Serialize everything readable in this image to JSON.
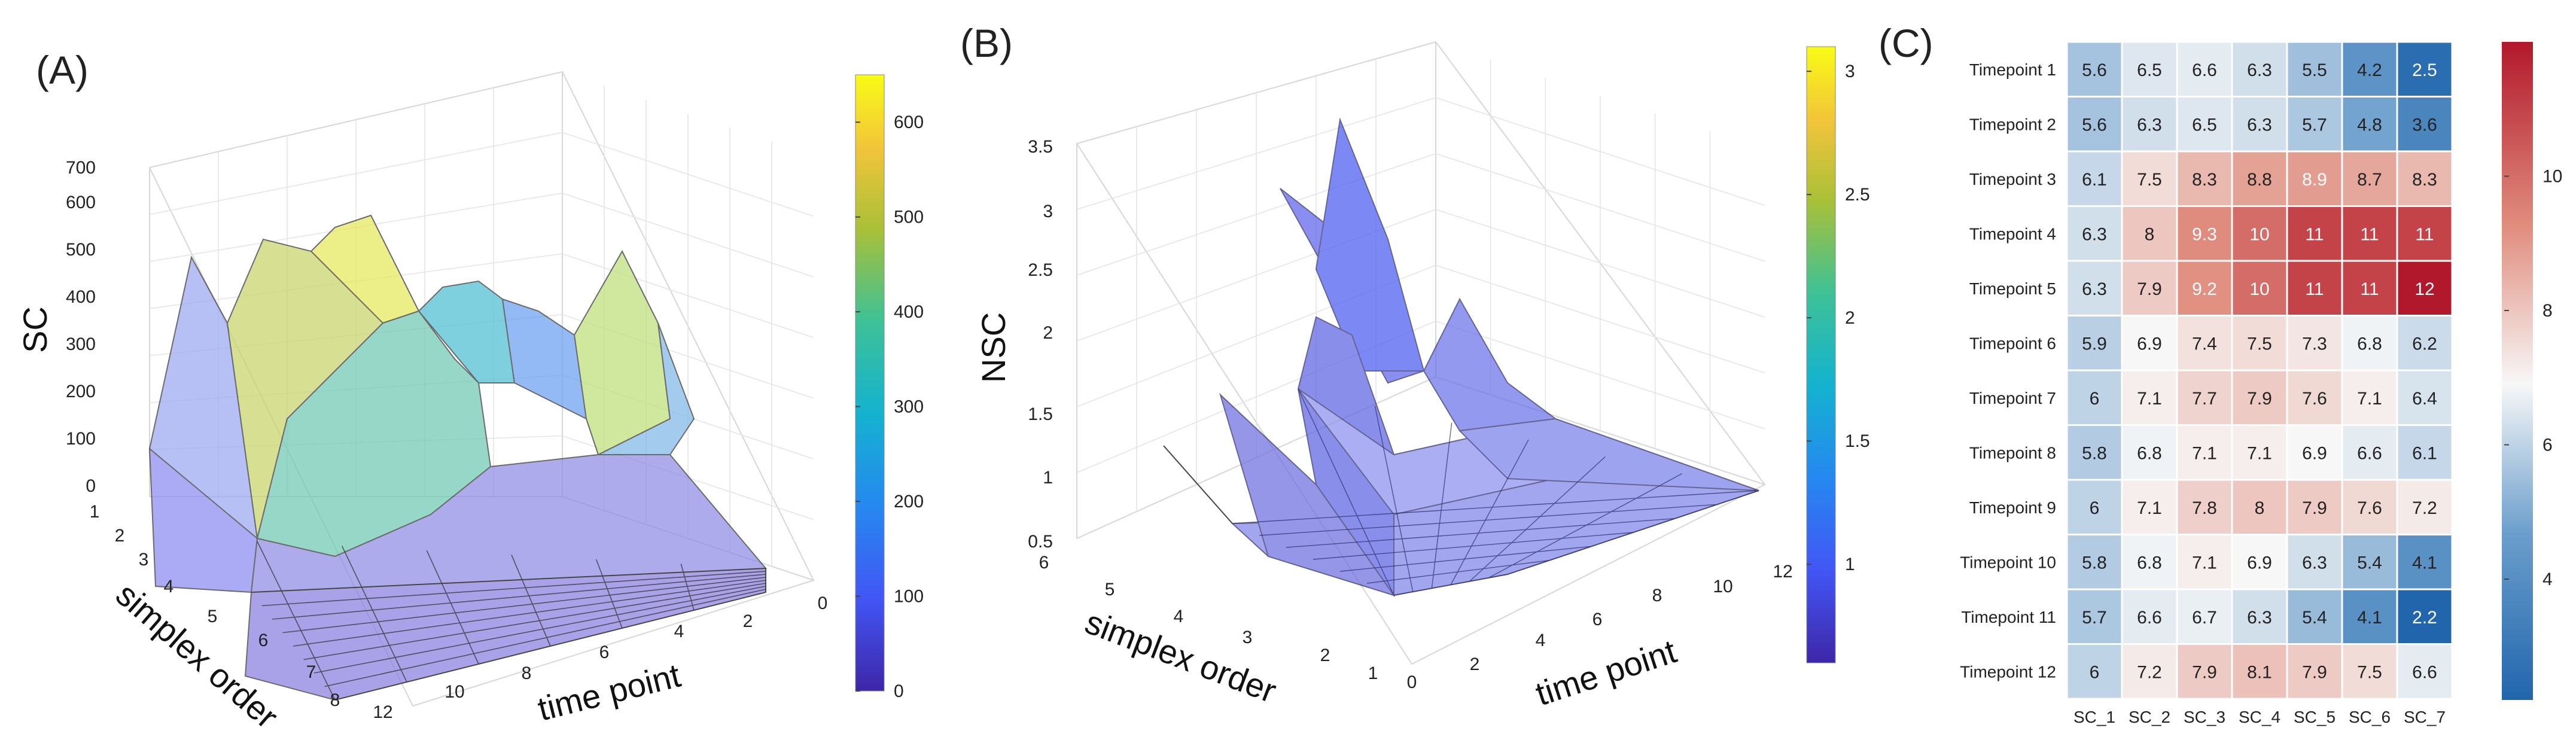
{
  "panels": {
    "a": {
      "label": "(A)",
      "title_z": "SC",
      "xlabel": "simplex order",
      "ylabel": "time point",
      "z_ticks": [
        "0",
        "100",
        "200",
        "300",
        "400",
        "500",
        "600",
        "700"
      ],
      "x_ticks": [
        "1",
        "2",
        "3",
        "4",
        "5",
        "6",
        "7",
        "8"
      ],
      "y_ticks": [
        "2",
        "4",
        "6",
        "8",
        "10",
        "12"
      ],
      "y_tick0": "0",
      "colorbar_ticks": [
        "0",
        "100",
        "200",
        "300",
        "400",
        "500",
        "600"
      ]
    },
    "b": {
      "label": "(B)",
      "title_z": "NSC",
      "xlabel": "simplex order",
      "ylabel": "time point",
      "z_ticks": [
        "0.5",
        "1",
        "1.5",
        "2",
        "2.5",
        "3",
        "3.5"
      ],
      "x_ticks": [
        "0",
        "1",
        "2",
        "3",
        "4",
        "5",
        "6"
      ],
      "y_ticks": [
        "2",
        "4",
        "6",
        "8",
        "10",
        "12"
      ],
      "colorbar_ticks": [
        "1",
        "1.5",
        "2",
        "2.5",
        "3"
      ]
    },
    "c": {
      "label": "(C)",
      "colorbar_ticks": [
        "4",
        "6",
        "8",
        "10"
      ]
    }
  },
  "chart_data": [
    {
      "type": "surface",
      "panel": "A",
      "zlabel": "SC",
      "xlabel": "simplex order",
      "ylabel": "time point",
      "zlim": [
        0,
        700
      ],
      "x_range": [
        1,
        8
      ],
      "y_range": [
        0,
        12
      ],
      "colorbar_range": [
        0,
        650
      ],
      "colormap": "parula",
      "approx_peak_values": [
        {
          "label": "order 1-2 ridge",
          "value": 450
        },
        {
          "label": "order 3 peak",
          "value": 560
        },
        {
          "label": "order 4 peak",
          "value": 580
        },
        {
          "label": "order 5 peak",
          "value": 450
        },
        {
          "label": "order 6 peak",
          "value": 530
        },
        {
          "label": "orders 7-8",
          "value": 30
        }
      ]
    },
    {
      "type": "surface",
      "panel": "B",
      "zlabel": "NSC",
      "xlabel": "simplex order",
      "ylabel": "time point",
      "zlim": [
        0.5,
        3.5
      ],
      "x_range": [
        0,
        6
      ],
      "y_range": [
        0,
        12
      ],
      "colorbar_range": [
        0.6,
        3.1
      ],
      "colormap": "parula",
      "approx_peak_values": [
        {
          "label": "main spike",
          "value": 3.3
        },
        {
          "label": "second ridge",
          "value": 2.5
        },
        {
          "label": "baseline",
          "value": 1.0
        }
      ]
    },
    {
      "type": "heatmap",
      "panel": "C",
      "colormap": "diverging blue-white-red",
      "colorbar_range": [
        2.2,
        12
      ],
      "columns": [
        "SC_1",
        "SC_2",
        "SC_3",
        "SC_4",
        "SC_5",
        "SC_6",
        "SC_7"
      ],
      "rows": [
        "Timepoint 1",
        "Timepoint 2",
        "Timepoint 3",
        "Timepoint 4",
        "Timepoint 5",
        "Timepoint 6",
        "Timepoint 7",
        "Timepoint 8",
        "Timepoint 9",
        "Timepoint 10",
        "Timepoint 11",
        "Timepoint 12"
      ],
      "values": [
        [
          5.6,
          6.5,
          6.6,
          6.3,
          5.5,
          4.2,
          2.5
        ],
        [
          5.6,
          6.3,
          6.5,
          6.3,
          5.7,
          4.8,
          3.6
        ],
        [
          6.1,
          7.5,
          8.3,
          8.8,
          8.9,
          8.7,
          8.3
        ],
        [
          6.3,
          8,
          9.3,
          10,
          11,
          11,
          11
        ],
        [
          6.3,
          7.9,
          9.2,
          10,
          11,
          11,
          12
        ],
        [
          5.9,
          6.9,
          7.4,
          7.5,
          7.3,
          6.8,
          6.2
        ],
        [
          6,
          7.1,
          7.7,
          7.9,
          7.6,
          7.1,
          6.4
        ],
        [
          5.8,
          6.8,
          7.1,
          7.1,
          6.9,
          6.6,
          6.1
        ],
        [
          6,
          7.1,
          7.8,
          8,
          7.9,
          7.6,
          7.2
        ],
        [
          5.8,
          6.8,
          7.1,
          6.9,
          6.3,
          5.4,
          4.1
        ],
        [
          5.7,
          6.6,
          6.7,
          6.3,
          5.4,
          4.1,
          2.2
        ],
        [
          6,
          7.2,
          7.9,
          8.1,
          7.9,
          7.5,
          6.6
        ]
      ]
    }
  ]
}
